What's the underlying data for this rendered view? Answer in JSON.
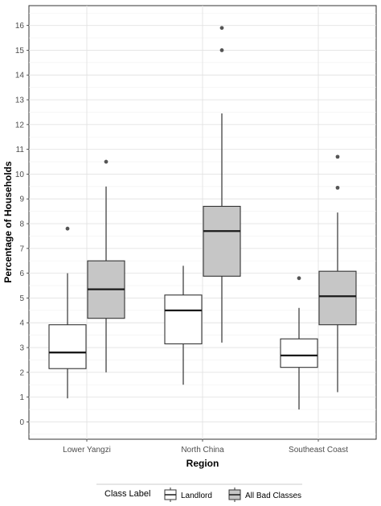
{
  "chart_data": {
    "type": "boxplot",
    "xlabel": "Region",
    "ylabel": "Percentage of Households",
    "ylim": [
      -0.7,
      16.8
    ],
    "y_ticks": [
      0,
      1,
      2,
      3,
      4,
      5,
      6,
      7,
      8,
      9,
      10,
      11,
      12,
      13,
      14,
      15,
      16
    ],
    "categories": [
      "Lower Yangzi",
      "North China",
      "Southeast Coast"
    ],
    "grid": true,
    "legend": {
      "title": "Class Label",
      "position": "bottom",
      "entries": [
        "Landlord",
        "All Bad Classes"
      ]
    },
    "series": [
      {
        "name": "Landlord",
        "color": "#ffffff",
        "boxes": [
          {
            "category": "Lower Yangzi",
            "whisker_low": 0.95,
            "q1": 2.15,
            "median": 2.8,
            "q3": 3.92,
            "whisker_high": 6.0,
            "outliers": [
              7.8
            ]
          },
          {
            "category": "North China",
            "whisker_low": 1.5,
            "q1": 3.15,
            "median": 4.5,
            "q3": 5.12,
            "whisker_high": 6.3,
            "outliers": []
          },
          {
            "category": "Southeast Coast",
            "whisker_low": 0.5,
            "q1": 2.2,
            "median": 2.68,
            "q3": 3.35,
            "whisker_high": 4.6,
            "outliers": [
              5.8
            ]
          }
        ]
      },
      {
        "name": "All Bad Classes",
        "color": "#c6c6c6",
        "boxes": [
          {
            "category": "Lower Yangzi",
            "whisker_low": 2.0,
            "q1": 4.18,
            "median": 5.35,
            "q3": 6.5,
            "whisker_high": 9.5,
            "outliers": [
              10.5
            ]
          },
          {
            "category": "North China",
            "whisker_low": 3.2,
            "q1": 5.88,
            "median": 7.7,
            "q3": 8.7,
            "whisker_high": 12.45,
            "outliers": [
              15.0,
              15.9
            ]
          },
          {
            "category": "Southeast Coast",
            "whisker_low": 1.2,
            "q1": 3.92,
            "median": 5.07,
            "q3": 6.08,
            "whisker_high": 8.45,
            "outliers": [
              9.45,
              10.7
            ]
          }
        ]
      }
    ]
  }
}
